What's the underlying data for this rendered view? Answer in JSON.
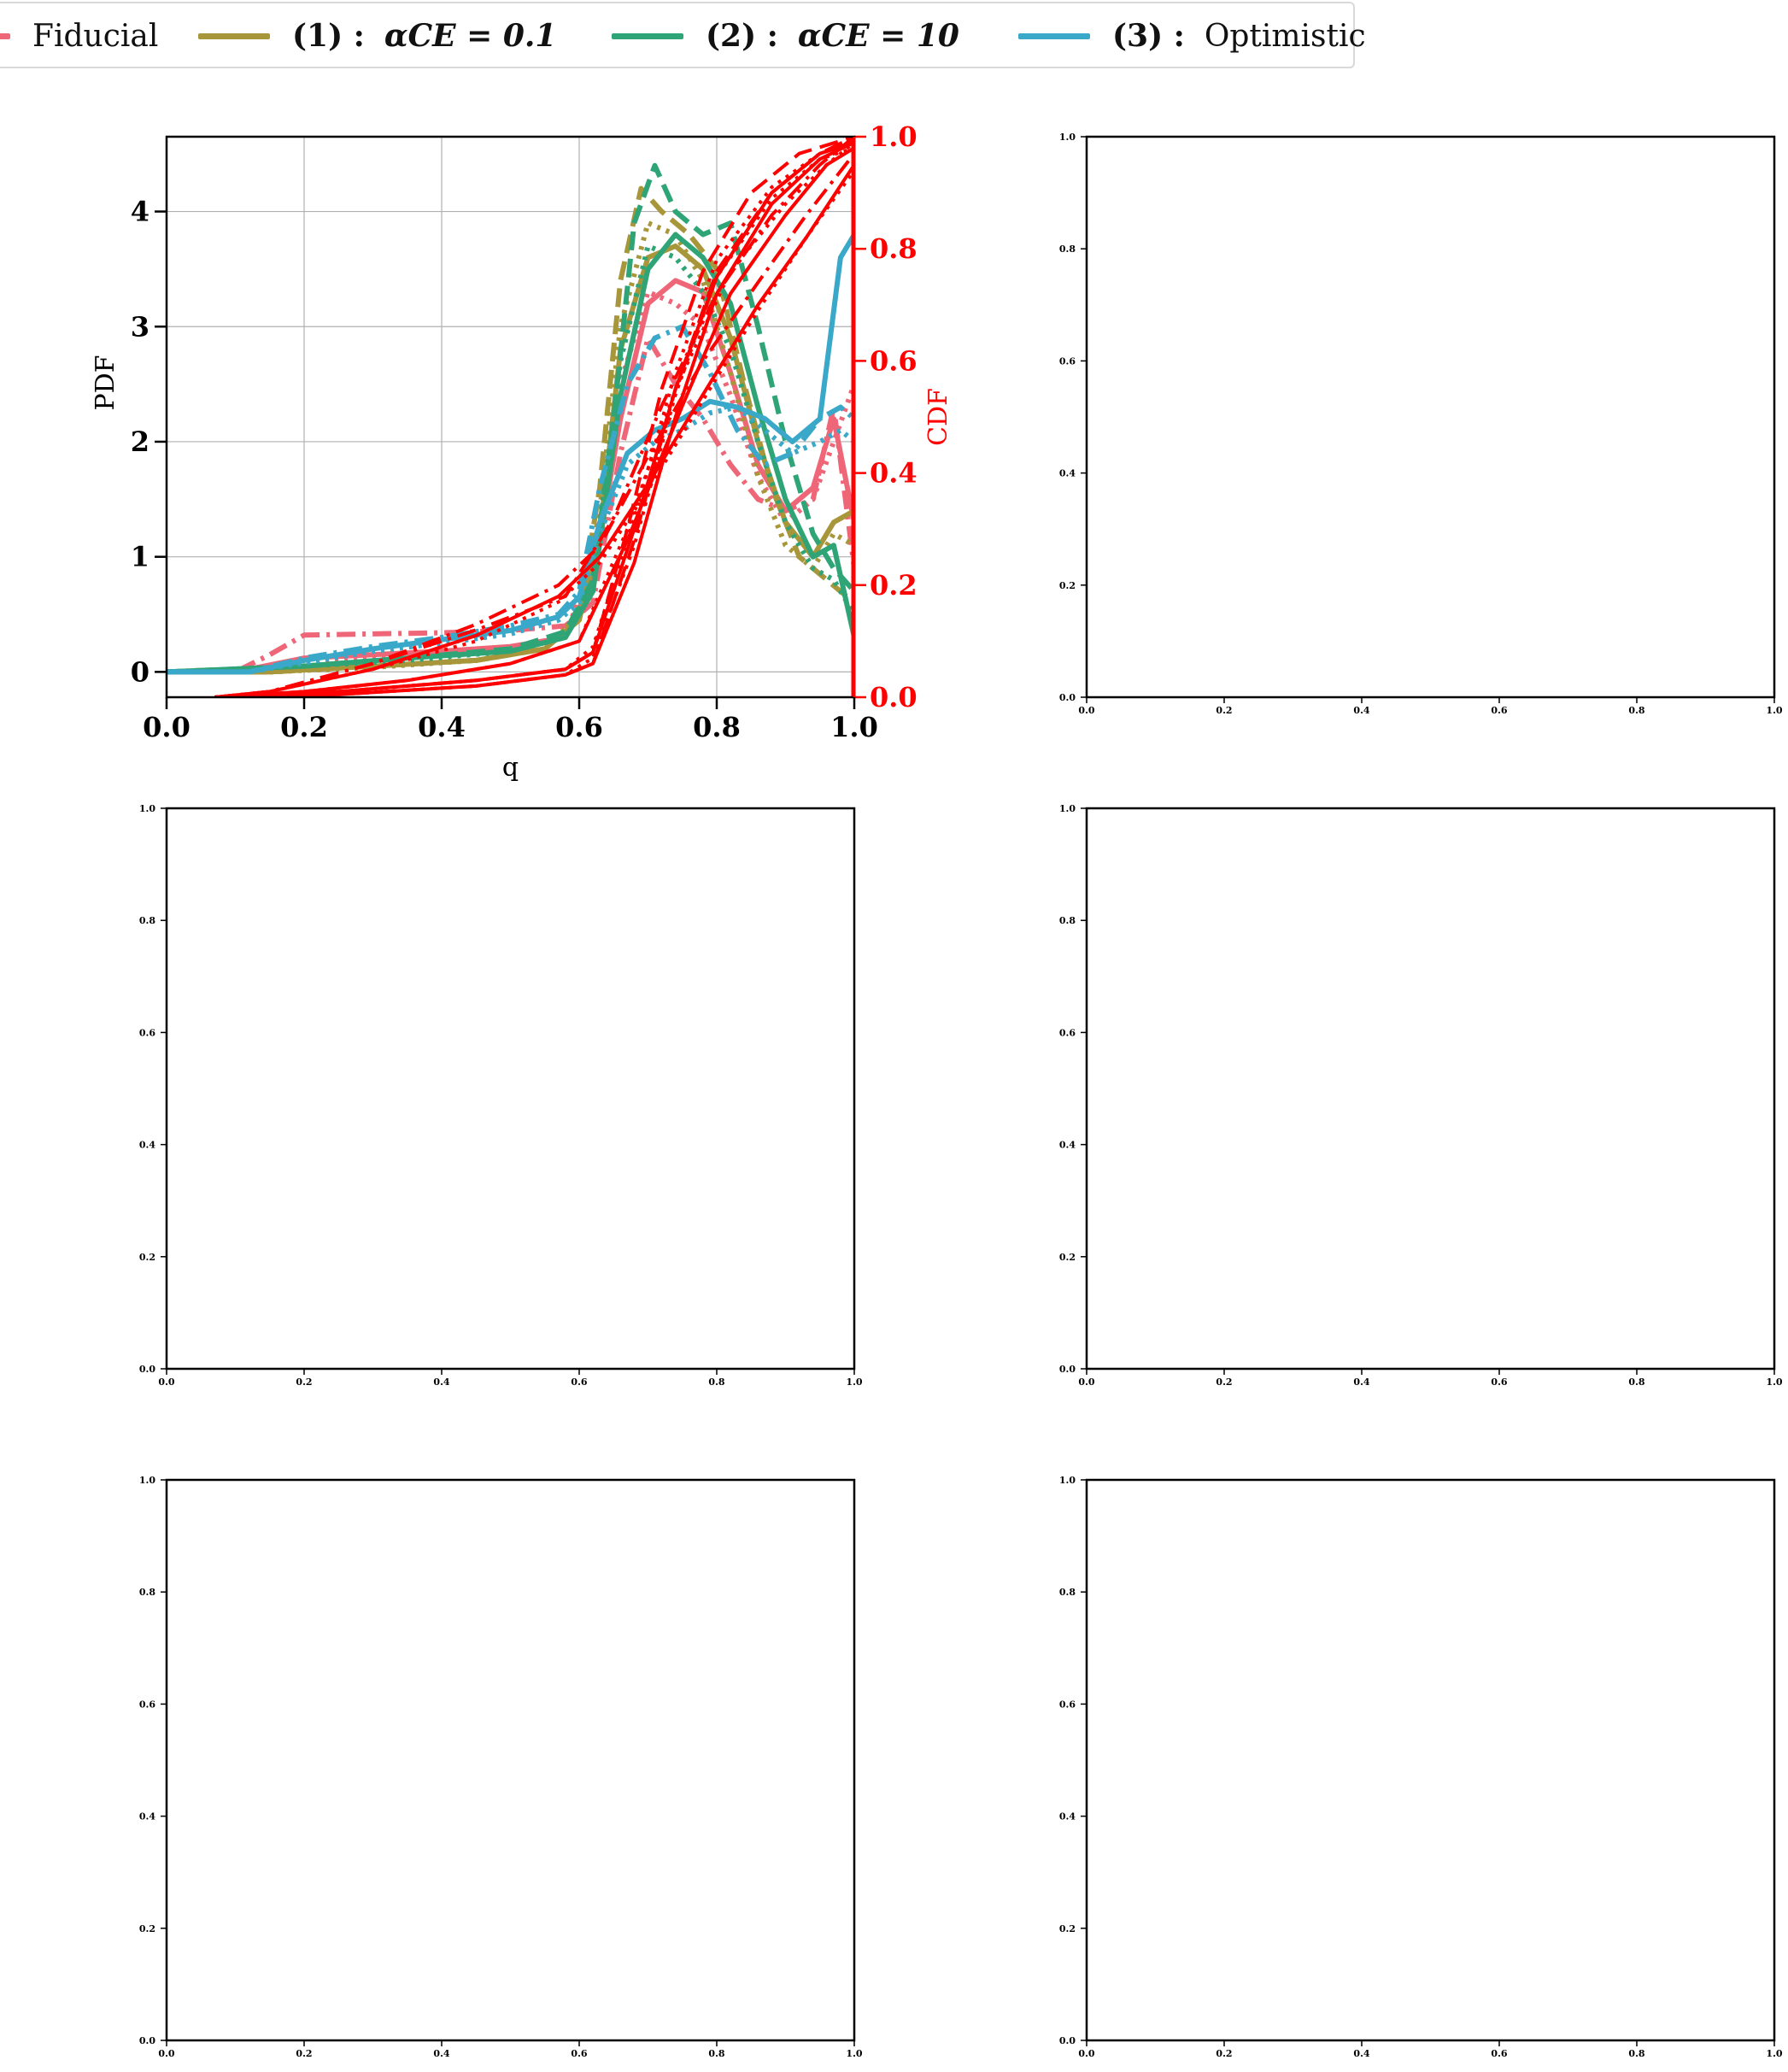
{
  "legend": {
    "placement": "top",
    "items": [
      {
        "id": "fiducial",
        "prefix": "",
        "label": "Fiducial",
        "color": "#ee6677"
      },
      {
        "id": "s1",
        "prefix": "(1) :",
        "label": "αCE = 0.1",
        "color": "#a8963a"
      },
      {
        "id": "s2",
        "prefix": "(2) :",
        "label": "αCE = 10",
        "color": "#2fa577"
      },
      {
        "id": "s3",
        "prefix": "(3) :",
        "label": "Optimistic",
        "color": "#3aa8c8"
      }
    ]
  },
  "chart_data": [
    {
      "type": "line",
      "panel": "top-left",
      "xlabel": "q",
      "ylabel": "PDF",
      "y2label": "CDF",
      "xlim": [
        0.0,
        1.0
      ],
      "ylim": [
        -0.22,
        4.65
      ],
      "y2lim": [
        0.0,
        1.0
      ],
      "xticks": [
        "0.0",
        "0.2",
        "0.4",
        "0.6",
        "0.8",
        "1.0"
      ],
      "yticks": [
        "0",
        "1",
        "2",
        "3",
        "4"
      ],
      "y2ticks": [
        "0.0",
        "0.2",
        "0.4",
        "0.6",
        "0.8",
        "1.0"
      ],
      "grid": true,
      "cdf_color": "#ff0000",
      "pdf_series": [
        {
          "name": "Fiducial",
          "color": "#ee6677",
          "style": "dashdot",
          "x": [
            0.0,
            0.1,
            0.15,
            0.2,
            0.3,
            0.4,
            0.5,
            0.58,
            0.62,
            0.66,
            0.7,
            0.74,
            0.78,
            0.82,
            0.86,
            0.9,
            0.94,
            0.97,
            1.0
          ],
          "y": [
            0,
            0,
            0.15,
            0.32,
            0.33,
            0.34,
            0.36,
            0.4,
            0.6,
            1.9,
            2.9,
            2.5,
            2.2,
            1.8,
            1.5,
            1.4,
            1.5,
            2.3,
            0.9
          ]
        },
        {
          "name": "Fiducial",
          "color": "#ee6677",
          "style": "solid",
          "x": [
            0.0,
            0.1,
            0.2,
            0.3,
            0.4,
            0.5,
            0.58,
            0.62,
            0.66,
            0.7,
            0.74,
            0.78,
            0.82,
            0.86,
            0.9,
            0.94,
            0.97,
            1.0
          ],
          "y": [
            0,
            0,
            0.12,
            0.15,
            0.18,
            0.22,
            0.3,
            0.8,
            2.2,
            3.2,
            3.4,
            3.3,
            2.6,
            1.8,
            1.4,
            1.6,
            2.2,
            1.3
          ]
        },
        {
          "name": "Fiducial",
          "color": "#ee6677",
          "style": "dotted",
          "x": [
            0.0,
            0.1,
            0.2,
            0.3,
            0.4,
            0.5,
            0.58,
            0.62,
            0.66,
            0.7,
            0.74,
            0.78,
            0.82,
            0.86,
            0.9,
            0.94,
            0.97,
            1.0
          ],
          "y": [
            0,
            0,
            0.08,
            0.12,
            0.15,
            0.2,
            0.3,
            1.0,
            2.5,
            3.3,
            3.2,
            3.0,
            2.4,
            1.7,
            1.3,
            1.5,
            2.0,
            2.5
          ]
        },
        {
          "name": "(1) : αCE = 0.1",
          "color": "#a8963a",
          "style": "dashed",
          "x": [
            0.0,
            0.15,
            0.3,
            0.45,
            0.55,
            0.6,
            0.63,
            0.66,
            0.69,
            0.72,
            0.76,
            0.8,
            0.84,
            0.88,
            0.92,
            0.96,
            1.0
          ],
          "y": [
            0,
            0,
            0.05,
            0.1,
            0.2,
            0.5,
            1.6,
            3.4,
            4.2,
            4.0,
            3.8,
            3.5,
            2.5,
            1.6,
            1.0,
            0.8,
            0.6
          ]
        },
        {
          "name": "(1) : αCE = 0.1",
          "color": "#a8963a",
          "style": "solid",
          "x": [
            0.0,
            0.15,
            0.3,
            0.45,
            0.55,
            0.6,
            0.63,
            0.66,
            0.7,
            0.74,
            0.78,
            0.82,
            0.86,
            0.9,
            0.94,
            0.97,
            1.0
          ],
          "y": [
            0,
            0,
            0.05,
            0.1,
            0.2,
            0.45,
            1.2,
            2.8,
            3.6,
            3.7,
            3.5,
            2.9,
            2.0,
            1.3,
            1.0,
            1.3,
            1.4
          ]
        },
        {
          "name": "(1) : αCE = 0.1",
          "color": "#a8963a",
          "style": "dotted",
          "x": [
            0.0,
            0.15,
            0.3,
            0.45,
            0.55,
            0.6,
            0.63,
            0.66,
            0.7,
            0.74,
            0.78,
            0.82,
            0.86,
            0.9,
            0.94,
            0.97,
            1.0
          ],
          "y": [
            0,
            0,
            0.04,
            0.1,
            0.2,
            0.5,
            1.4,
            3.0,
            3.9,
            3.8,
            3.4,
            2.6,
            1.7,
            1.1,
            0.9,
            1.2,
            1.1
          ]
        },
        {
          "name": "(2) : αCE = 10",
          "color": "#2fa577",
          "style": "dashed",
          "x": [
            0.0,
            0.2,
            0.35,
            0.5,
            0.58,
            0.62,
            0.65,
            0.68,
            0.71,
            0.74,
            0.78,
            0.82,
            0.86,
            0.9,
            0.94,
            0.97,
            1.0
          ],
          "y": [
            0,
            0.05,
            0.12,
            0.2,
            0.35,
            0.8,
            2.2,
            3.9,
            4.4,
            4.0,
            3.8,
            3.9,
            3.0,
            2.0,
            1.2,
            0.9,
            0.7
          ]
        },
        {
          "name": "(2) : αCE = 10",
          "color": "#2fa577",
          "style": "solid",
          "x": [
            0.0,
            0.2,
            0.35,
            0.5,
            0.58,
            0.62,
            0.66,
            0.7,
            0.74,
            0.78,
            0.82,
            0.86,
            0.9,
            0.94,
            0.97,
            1.0
          ],
          "y": [
            0,
            0.05,
            0.12,
            0.18,
            0.3,
            0.7,
            2.4,
            3.5,
            3.8,
            3.6,
            3.2,
            2.3,
            1.5,
            1.0,
            1.1,
            0.3
          ]
        },
        {
          "name": "(2) : αCE = 10",
          "color": "#2fa577",
          "style": "dotted",
          "x": [
            0.0,
            0.2,
            0.35,
            0.5,
            0.58,
            0.62,
            0.66,
            0.7,
            0.74,
            0.78,
            0.82,
            0.86,
            0.9,
            0.94,
            0.97,
            1.0
          ],
          "y": [
            0,
            0.05,
            0.1,
            0.18,
            0.3,
            0.8,
            2.7,
            3.7,
            3.6,
            3.3,
            2.8,
            2.0,
            1.3,
            0.9,
            0.8,
            0.5
          ]
        },
        {
          "name": "(3) : Optimistic",
          "color": "#3aa8c8",
          "style": "dashdot",
          "x": [
            0.0,
            0.12,
            0.2,
            0.3,
            0.4,
            0.5,
            0.57,
            0.6,
            0.63,
            0.67,
            0.71,
            0.75,
            0.79,
            0.83,
            0.87,
            0.91,
            0.95,
            0.98,
            1.0
          ],
          "y": [
            0,
            0,
            0.12,
            0.22,
            0.3,
            0.4,
            0.5,
            0.7,
            1.6,
            2.5,
            2.9,
            3.0,
            2.6,
            2.1,
            1.8,
            1.9,
            2.2,
            2.3,
            2.2
          ]
        },
        {
          "name": "(3) : Optimistic",
          "color": "#3aa8c8",
          "style": "solid",
          "x": [
            0.0,
            0.12,
            0.2,
            0.3,
            0.4,
            0.5,
            0.57,
            0.6,
            0.63,
            0.67,
            0.71,
            0.75,
            0.79,
            0.83,
            0.87,
            0.91,
            0.95,
            0.98,
            1.0
          ],
          "y": [
            0,
            0,
            0.1,
            0.2,
            0.28,
            0.36,
            0.48,
            0.65,
            1.3,
            1.9,
            2.1,
            2.2,
            2.35,
            2.3,
            2.2,
            2.0,
            2.2,
            3.6,
            3.8
          ]
        },
        {
          "name": "(3) : Optimistic",
          "color": "#3aa8c8",
          "style": "dotted",
          "x": [
            0.0,
            0.12,
            0.2,
            0.3,
            0.4,
            0.5,
            0.57,
            0.6,
            0.63,
            0.67,
            0.71,
            0.75,
            0.79,
            0.83,
            0.87,
            0.91,
            0.95,
            0.98,
            1.0
          ],
          "y": [
            0,
            0,
            0.08,
            0.18,
            0.25,
            0.33,
            0.45,
            0.6,
            1.2,
            1.8,
            2.0,
            2.1,
            2.25,
            2.3,
            2.1,
            1.9,
            2.0,
            2.1,
            2.0
          ]
        }
      ],
      "cdf_series": [
        {
          "style": "dashdot",
          "x": [
            0.07,
            0.15,
            0.3,
            0.45,
            0.58,
            0.65,
            0.72,
            0.8,
            0.88,
            0.95,
            1.0
          ],
          "y": [
            0,
            0.01,
            0.06,
            0.12,
            0.18,
            0.32,
            0.52,
            0.72,
            0.86,
            0.95,
            1.0
          ]
        },
        {
          "style": "solid",
          "x": [
            0.07,
            0.2,
            0.35,
            0.5,
            0.6,
            0.67,
            0.75,
            0.82,
            0.9,
            0.96,
            1.0
          ],
          "y": [
            0,
            0.01,
            0.03,
            0.06,
            0.1,
            0.28,
            0.52,
            0.72,
            0.86,
            0.95,
            0.98
          ]
        },
        {
          "style": "dotted",
          "x": [
            0.07,
            0.2,
            0.35,
            0.5,
            0.6,
            0.67,
            0.74,
            0.82,
            0.9,
            0.96,
            1.0
          ],
          "y": [
            0,
            0.01,
            0.03,
            0.06,
            0.1,
            0.3,
            0.55,
            0.76,
            0.88,
            0.95,
            0.99
          ]
        },
        {
          "style": "dashed",
          "x": [
            0.07,
            0.25,
            0.45,
            0.58,
            0.62,
            0.68,
            0.74,
            0.8,
            0.88,
            0.95,
            1.0
          ],
          "y": [
            0,
            0.005,
            0.02,
            0.04,
            0.06,
            0.28,
            0.55,
            0.76,
            0.9,
            0.97,
            1.0
          ]
        },
        {
          "style": "solid",
          "x": [
            0.07,
            0.25,
            0.45,
            0.58,
            0.62,
            0.68,
            0.74,
            0.8,
            0.88,
            0.95,
            1.0
          ],
          "y": [
            0,
            0.005,
            0.02,
            0.04,
            0.06,
            0.24,
            0.5,
            0.72,
            0.88,
            0.96,
            0.99
          ]
        },
        {
          "style": "dotted",
          "x": [
            0.07,
            0.25,
            0.45,
            0.58,
            0.62,
            0.68,
            0.74,
            0.8,
            0.88,
            0.95,
            1.0
          ],
          "y": [
            0,
            0.005,
            0.02,
            0.04,
            0.07,
            0.27,
            0.54,
            0.75,
            0.89,
            0.96,
            0.98
          ]
        },
        {
          "style": "dashed",
          "x": [
            0.07,
            0.25,
            0.45,
            0.58,
            0.62,
            0.67,
            0.72,
            0.78,
            0.85,
            0.92,
            1.0
          ],
          "y": [
            0,
            0.01,
            0.03,
            0.05,
            0.08,
            0.3,
            0.55,
            0.76,
            0.9,
            0.97,
            1.0
          ]
        },
        {
          "style": "solid",
          "x": [
            0.07,
            0.25,
            0.45,
            0.58,
            0.62,
            0.68,
            0.74,
            0.8,
            0.88,
            0.95,
            1.0
          ],
          "y": [
            0,
            0.01,
            0.03,
            0.05,
            0.08,
            0.3,
            0.55,
            0.75,
            0.9,
            0.97,
            0.99
          ]
        },
        {
          "style": "dotted",
          "x": [
            0.07,
            0.25,
            0.45,
            0.58,
            0.62,
            0.68,
            0.74,
            0.8,
            0.88,
            0.95,
            1.0
          ],
          "y": [
            0,
            0.01,
            0.03,
            0.05,
            0.09,
            0.32,
            0.58,
            0.78,
            0.91,
            0.97,
            0.99
          ]
        },
        {
          "style": "dashdot",
          "x": [
            0.07,
            0.15,
            0.3,
            0.45,
            0.57,
            0.63,
            0.7,
            0.78,
            0.86,
            0.93,
            1.0
          ],
          "y": [
            0,
            0.01,
            0.06,
            0.13,
            0.2,
            0.27,
            0.43,
            0.6,
            0.74,
            0.86,
            0.97
          ]
        },
        {
          "style": "solid",
          "x": [
            0.07,
            0.15,
            0.3,
            0.45,
            0.57,
            0.63,
            0.7,
            0.78,
            0.86,
            0.93,
            1.0
          ],
          "y": [
            0,
            0.01,
            0.05,
            0.11,
            0.18,
            0.25,
            0.38,
            0.54,
            0.7,
            0.82,
            0.95
          ]
        },
        {
          "style": "dotted",
          "x": [
            0.07,
            0.15,
            0.3,
            0.45,
            0.57,
            0.63,
            0.7,
            0.78,
            0.86,
            0.93,
            1.0
          ],
          "y": [
            0,
            0.01,
            0.05,
            0.1,
            0.17,
            0.24,
            0.37,
            0.53,
            0.69,
            0.82,
            0.94
          ]
        }
      ]
    },
    {
      "type": "line",
      "panel": "top-right",
      "xlim": [
        0.0,
        1.0
      ],
      "ylim": [
        0.0,
        1.0
      ],
      "xticks": [
        "0.0",
        "0.2",
        "0.4",
        "0.6",
        "0.8",
        "1.0"
      ],
      "yticks": [
        "0.0",
        "0.2",
        "0.4",
        "0.6",
        "0.8",
        "1.0"
      ],
      "series": []
    },
    {
      "type": "line",
      "panel": "middle-left",
      "xlim": [
        0.0,
        1.0
      ],
      "ylim": [
        0.0,
        1.0
      ],
      "xticks": [
        "0.0",
        "0.2",
        "0.4",
        "0.6",
        "0.8",
        "1.0"
      ],
      "yticks": [
        "0.0",
        "0.2",
        "0.4",
        "0.6",
        "0.8",
        "1.0"
      ],
      "series": []
    },
    {
      "type": "line",
      "panel": "middle-right",
      "xlim": [
        0.0,
        1.0
      ],
      "ylim": [
        0.0,
        1.0
      ],
      "xticks": [
        "0.0",
        "0.2",
        "0.4",
        "0.6",
        "0.8",
        "1.0"
      ],
      "yticks": [
        "0.0",
        "0.2",
        "0.4",
        "0.6",
        "0.8",
        "1.0"
      ],
      "series": []
    },
    {
      "type": "line",
      "panel": "bottom-left",
      "xlim": [
        0.0,
        1.0
      ],
      "ylim": [
        0.0,
        1.0
      ],
      "xticks": [
        "0.0",
        "0.2",
        "0.4",
        "0.6",
        "0.8",
        "1.0"
      ],
      "yticks": [
        "0.0",
        "0.2",
        "0.4",
        "0.6",
        "0.8",
        "1.0"
      ],
      "series": []
    },
    {
      "type": "line",
      "panel": "bottom-right",
      "xlim": [
        0.0,
        1.0
      ],
      "ylim": [
        0.0,
        1.0
      ],
      "xticks": [
        "0.0",
        "0.2",
        "0.4",
        "0.6",
        "0.8",
        "1.0"
      ],
      "yticks": [
        "0.0",
        "0.2",
        "0.4",
        "0.6",
        "0.8",
        "1.0"
      ],
      "series": []
    }
  ]
}
